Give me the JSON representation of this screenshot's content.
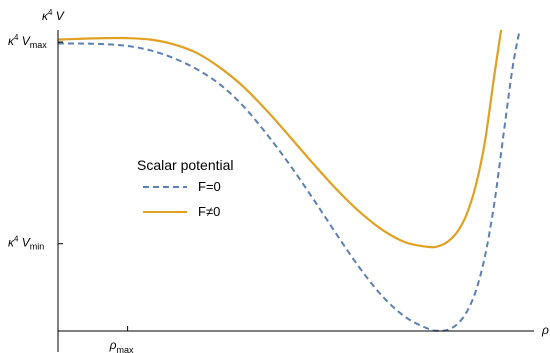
{
  "chart_data": {
    "type": "line",
    "title": "",
    "xlabel": "ρ",
    "ylabel": "κ⁴ V",
    "xlim": [
      0,
      1.0
    ],
    "ylim": [
      0,
      1.0
    ],
    "x_ticks": [
      {
        "value": 0.15,
        "base": "ρ",
        "sub": "max"
      }
    ],
    "y_ticks": [
      {
        "value": 0.96,
        "base": "κ",
        "sup": "4",
        "mid": " V",
        "sub": "max"
      },
      {
        "value": 0.29,
        "base": "κ",
        "sup": "4",
        "mid": " V",
        "sub": "min"
      }
    ],
    "legend": {
      "title": "Scalar potential",
      "placement": "center-left"
    },
    "series": [
      {
        "name": "F=0",
        "color": "#5b80b4",
        "dash": "dashed",
        "x": [
          0.0,
          0.05,
          0.1,
          0.15,
          0.2,
          0.25,
          0.3,
          0.35,
          0.4,
          0.45,
          0.5,
          0.55,
          0.6,
          0.65,
          0.7,
          0.75,
          0.8,
          0.82,
          0.84,
          0.86,
          0.88,
          0.9,
          0.92,
          0.94,
          0.96,
          0.98,
          0.995
        ],
        "y": [
          0.955,
          0.955,
          0.953,
          0.947,
          0.932,
          0.906,
          0.869,
          0.818,
          0.746,
          0.654,
          0.551,
          0.439,
          0.322,
          0.21,
          0.114,
          0.045,
          0.006,
          0.001,
          0.004,
          0.022,
          0.061,
          0.131,
          0.247,
          0.421,
          0.651,
          0.878,
          1.0
        ]
      },
      {
        "name": "F≠0",
        "color": "#e0a022",
        "dash": "solid",
        "x": [
          0.0,
          0.05,
          0.1,
          0.15,
          0.2,
          0.25,
          0.3,
          0.35,
          0.4,
          0.45,
          0.5,
          0.55,
          0.6,
          0.65,
          0.7,
          0.75,
          0.8,
          0.82,
          0.84,
          0.86,
          0.88,
          0.9,
          0.92,
          0.94,
          0.955
        ],
        "y": [
          0.968,
          0.971,
          0.973,
          0.973,
          0.968,
          0.952,
          0.923,
          0.874,
          0.811,
          0.732,
          0.645,
          0.556,
          0.471,
          0.396,
          0.335,
          0.294,
          0.279,
          0.282,
          0.297,
          0.328,
          0.385,
          0.481,
          0.628,
          0.846,
          1.0
        ]
      }
    ]
  }
}
